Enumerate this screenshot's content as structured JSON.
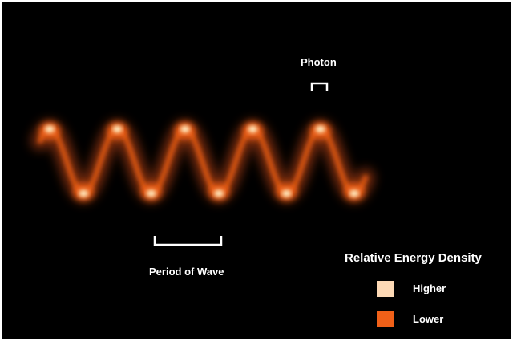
{
  "labels": {
    "photon": "Photon",
    "period": "Period of Wave"
  },
  "legend": {
    "title": "Relative Energy Density",
    "higher": "Higher",
    "lower": "Lower"
  },
  "colors": {
    "background": "#000000",
    "higher": "#fdd9b5",
    "lower": "#f06018",
    "glow": "#e8551a",
    "core": "#fff2c8"
  },
  "wave": {
    "cycles": 5
  }
}
